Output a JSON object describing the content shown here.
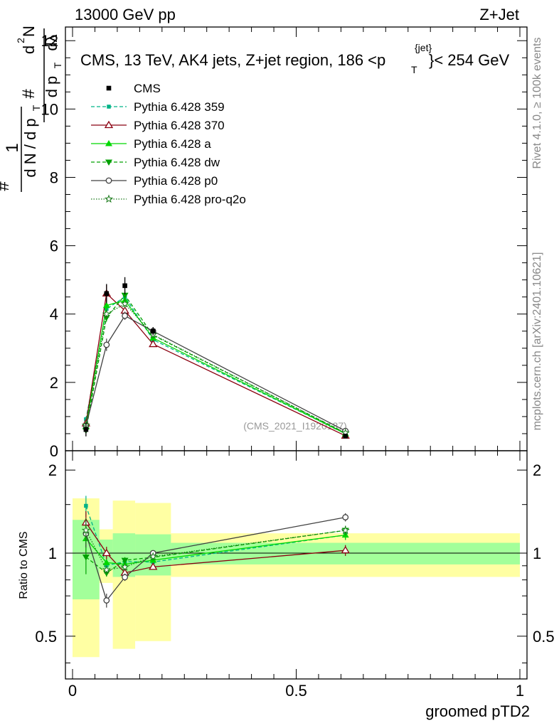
{
  "header": {
    "energy": "13000 GeV pp",
    "process": "Z+Jet"
  },
  "side_labels": {
    "rivet": "Rivet 4.1.0, ≥ 100k events",
    "mcplots": "mcplots.cern.ch [arXiv:2401.10621]"
  },
  "watermark": "(CMS_2021_I1920187)",
  "chart_data": {
    "type": "line",
    "title": "CMS, 13 TeV, AK4 jets, Z+jet region, 186 <p_T^{jet}< 254 GeV",
    "title_main": "CMS, 13 TeV, AK4 jets, Z+jet region, 186 <p",
    "title_sup": "{jet}",
    "title_sub": "T",
    "title_end": "}< 254 GeV",
    "ylabel": "1/(dN/dp_T) d²N/(dp_T dλ)",
    "ylabel_parts": {
      "one": "1",
      "hash": "#",
      "dN": "d N / d p",
      "T": "T",
      "d2N": "d",
      "two": "2",
      "N": "N",
      "dpT": "d p",
      "dl": "dλ"
    },
    "xlabel": "groomed pTD2",
    "ratio_ylabel": "Ratio to CMS",
    "xlim": [
      0,
      1
    ],
    "ylim": [
      0,
      12.4
    ],
    "ratio_ylim": [
      0.35,
      2.35
    ],
    "x_ticks": [
      "0",
      "0.5",
      "1"
    ],
    "y_ticks": [
      "0",
      "2",
      "4",
      "6",
      "8",
      "10",
      "12"
    ],
    "ratio_ticks": [
      "0.5",
      "1",
      "2"
    ],
    "x": [
      0.03,
      0.076,
      0.117,
      0.18,
      0.61
    ],
    "bin_edges": [
      0.0,
      0.06,
      0.09,
      0.14,
      0.22,
      1.0
    ],
    "cms": {
      "name": "CMS",
      "values": [
        0.62,
        4.6,
        4.83,
        3.5,
        0.43
      ],
      "errors": [
        0.2,
        0.28,
        0.25,
        0.12,
        0.04
      ]
    },
    "band_green": [
      0.32,
      0.12,
      0.18,
      0.17,
      0.09
    ],
    "band_yellow": [
      0.58,
      0.22,
      0.55,
      0.52,
      0.18
    ],
    "series": [
      {
        "name": "Pythia 6.428 359",
        "values": [
          0.92,
          4.15,
          4.5,
          3.25,
          0.5
        ],
        "errors": [
          0.08,
          0.1,
          0.1,
          0.06,
          0.02
        ],
        "color": "#00b386",
        "dash": "5,3",
        "marker": "square"
      },
      {
        "name": "Pythia 6.428 370",
        "values": [
          0.8,
          4.6,
          4.1,
          3.12,
          0.44
        ],
        "errors": [
          0.08,
          0.25,
          0.12,
          0.06,
          0.02
        ],
        "color": "#8b0010",
        "dash": "",
        "marker": "triangle-open"
      },
      {
        "name": "Pythia 6.428 a",
        "values": [
          0.7,
          4.25,
          4.4,
          3.3,
          0.5
        ],
        "errors": [
          0.08,
          0.12,
          0.12,
          0.06,
          0.02
        ],
        "color": "#00d800",
        "dash": "",
        "marker": "triangle"
      },
      {
        "name": "Pythia 6.428 dw",
        "values": [
          0.6,
          3.9,
          4.55,
          3.38,
          0.52
        ],
        "errors": [
          0.08,
          0.12,
          0.12,
          0.06,
          0.02
        ],
        "color": "#00a000",
        "dash": "5,3",
        "marker": "triangle-down"
      },
      {
        "name": "Pythia 6.428 p0",
        "values": [
          0.73,
          3.1,
          3.95,
          3.5,
          0.58
        ],
        "errors": [
          0.08,
          0.18,
          0.12,
          0.06,
          0.02
        ],
        "color": "#404040",
        "dash": "",
        "marker": "circle-open"
      },
      {
        "name": "Pythia 6.428 pro-q2o",
        "values": [
          0.75,
          4.0,
          4.3,
          3.4,
          0.52
        ],
        "errors": [
          0.08,
          0.12,
          0.12,
          0.06,
          0.02
        ],
        "color": "#1a7a1a",
        "dash": "1.5,2",
        "marker": "star-open"
      }
    ]
  }
}
